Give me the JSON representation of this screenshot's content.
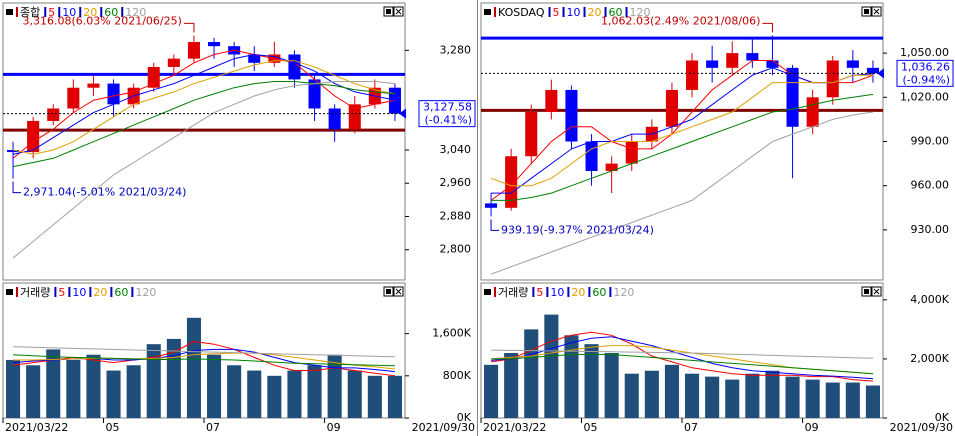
{
  "chart_data": [
    {
      "type": "candlestick",
      "title": "종합",
      "open": [
        3040,
        3035,
        3110,
        3140,
        3190,
        3200,
        3150,
        3190,
        3240,
        3260,
        3300,
        3290,
        3270,
        3250,
        3270,
        3210,
        3140,
        3090,
        3150,
        3190
      ],
      "high": [
        3060,
        3120,
        3150,
        3210,
        3220,
        3210,
        3200,
        3250,
        3270,
        3316.08,
        3310,
        3300,
        3290,
        3300,
        3280,
        3220,
        3150,
        3170,
        3210,
        3200
      ],
      "low": [
        2971.04,
        3020,
        3100,
        3130,
        3170,
        3120,
        3140,
        3180,
        3220,
        3250,
        3260,
        3240,
        3230,
        3240,
        3190,
        3110,
        3060,
        3080,
        3140,
        3110
      ],
      "close": [
        3035,
        3110,
        3140,
        3190,
        3200,
        3150,
        3190,
        3240,
        3260,
        3300,
        3290,
        3270,
        3250,
        3270,
        3210,
        3140,
        3090,
        3150,
        3190,
        3127.58
      ],
      "series": [
        {
          "name": "5",
          "color": "#ff0000",
          "values": [
            3020,
            3060,
            3090,
            3130,
            3160,
            3170,
            3180,
            3200,
            3220,
            3250,
            3270,
            3280,
            3270,
            3260,
            3250,
            3210,
            3170,
            3140,
            3150,
            3160
          ]
        },
        {
          "name": "10",
          "color": "#0000ff",
          "values": [
            3030,
            3040,
            3070,
            3100,
            3130,
            3150,
            3170,
            3185,
            3200,
            3220,
            3240,
            3260,
            3270,
            3265,
            3250,
            3230,
            3200,
            3180,
            3170,
            3160
          ]
        },
        {
          "name": "20",
          "color": "#e0a000",
          "values": [
            3040,
            3030,
            3040,
            3060,
            3090,
            3120,
            3150,
            3165,
            3180,
            3200,
            3215,
            3230,
            3245,
            3255,
            3255,
            3240,
            3220,
            3200,
            3185,
            3175
          ]
        },
        {
          "name": "60",
          "color": "#008000",
          "values": [
            3000,
            3010,
            3020,
            3040,
            3060,
            3080,
            3100,
            3120,
            3140,
            3160,
            3175,
            3190,
            3200,
            3205,
            3205,
            3200,
            3195,
            3185,
            3180,
            3175
          ]
        },
        {
          "name": "120",
          "color": "#a0a0a0",
          "values": [
            2780,
            2820,
            2860,
            2900,
            2940,
            2980,
            3010,
            3040,
            3070,
            3100,
            3130,
            3150,
            3170,
            3185,
            3195,
            3200,
            3205,
            3205,
            3205,
            3200
          ]
        }
      ],
      "ylim": [
        2727,
        3394
      ],
      "yticks": [
        {
          "value": 3280,
          "label": "3,280"
        },
        {
          "value": 3040,
          "label": "3,040"
        },
        {
          "value": 2960,
          "label": "2,960"
        },
        {
          "value": 2880,
          "label": "2,880"
        },
        {
          "value": 2800,
          "label": "2,800"
        }
      ],
      "hlines": [
        {
          "value": 3222,
          "color": "#0000ff"
        },
        {
          "value": 3088,
          "color": "#800000"
        }
      ],
      "last": {
        "value": 3127.58,
        "label": "3,127.58",
        "change_label": "(-0.41%)"
      },
      "annotations": [
        {
          "value": 3316.08,
          "label": "3,316.08(6.03% 2021/06/25)"
        },
        {
          "value": 2971.04,
          "label": "2,971.04(-5.01% 2021/03/24)"
        }
      ]
    },
    {
      "type": "bar",
      "title": "거래량",
      "color": "#1f4e7a",
      "values": [
        1100000,
        1000000,
        1300000,
        1100000,
        1200000,
        900000,
        1000000,
        1400000,
        1500000,
        1900000,
        1200000,
        1000000,
        900000,
        800000,
        900000,
        1000000,
        1200000,
        900000,
        800000,
        800000
      ],
      "series": [
        {
          "name": "5",
          "color": "#ff0000",
          "values": [
            1000000,
            1050000,
            1100000,
            1150000,
            1100000,
            1050000,
            1100000,
            1150000,
            1250000,
            1450000,
            1400000,
            1300000,
            1150000,
            1000000,
            900000,
            900000,
            950000,
            900000,
            850000,
            800000
          ]
        },
        {
          "name": "10",
          "color": "#0000ff",
          "values": [
            1050000,
            1080000,
            1100000,
            1120000,
            1130000,
            1100000,
            1100000,
            1130000,
            1180000,
            1280000,
            1300000,
            1300000,
            1250000,
            1150000,
            1050000,
            1000000,
            950000,
            950000,
            920000,
            880000
          ]
        },
        {
          "name": "20",
          "color": "#e0a000",
          "values": [
            1100000,
            1100000,
            1110000,
            1120000,
            1130000,
            1130000,
            1120000,
            1130000,
            1150000,
            1200000,
            1220000,
            1230000,
            1230000,
            1200000,
            1150000,
            1100000,
            1050000,
            1000000,
            970000,
            930000
          ]
        },
        {
          "name": "60",
          "color": "#008000",
          "values": [
            1200000,
            1180000,
            1160000,
            1150000,
            1140000,
            1130000,
            1120000,
            1110000,
            1110000,
            1120000,
            1110000,
            1100000,
            1080000,
            1060000,
            1040000,
            1030000,
            1020000,
            1010000,
            1000000,
            990000
          ]
        },
        {
          "name": "120",
          "color": "#a0a0a0",
          "values": [
            1350000,
            1340000,
            1330000,
            1320000,
            1310000,
            1300000,
            1290000,
            1280000,
            1270000,
            1260000,
            1250000,
            1240000,
            1230000,
            1220000,
            1210000,
            1200000,
            1190000,
            1180000,
            1170000,
            1160000
          ]
        }
      ],
      "ylim": [
        0,
        2560000
      ],
      "yticks": [
        {
          "value": 1600000,
          "label": "1,600K"
        },
        {
          "value": 800000,
          "label": "800K"
        },
        {
          "value": 0,
          "label": "0K"
        }
      ],
      "categories": [
        "2021/03/22",
        null,
        null,
        null,
        null,
        "05",
        null,
        null,
        null,
        null,
        "07",
        null,
        null,
        null,
        null,
        null,
        "09",
        null,
        null,
        null
      ],
      "end_label": "2021/09/30"
    },
    {
      "type": "candlestick",
      "title": "KOSDAQ",
      "open": [
        948,
        945,
        980,
        1010,
        1025,
        990,
        970,
        975,
        990,
        1000,
        1025,
        1045,
        1040,
        1050,
        1045,
        1040,
        1000,
        1020,
        1045,
        1040
      ],
      "high": [
        955,
        985,
        1015,
        1032,
        1028,
        995,
        980,
        995,
        1005,
        1030,
        1050,
        1055,
        1058,
        1060,
        1062.03,
        1042,
        1025,
        1048,
        1052,
        1045
      ],
      "low": [
        939.19,
        943,
        975,
        1005,
        985,
        960,
        955,
        970,
        985,
        995,
        1020,
        1030,
        1035,
        1040,
        1035,
        965,
        995,
        1015,
        1030,
        1030
      ],
      "close": [
        945,
        980,
        1010,
        1025,
        990,
        970,
        975,
        990,
        1000,
        1025,
        1045,
        1040,
        1050,
        1045,
        1040,
        1000,
        1020,
        1045,
        1040,
        1036.26
      ],
      "series": [
        {
          "name": "5",
          "color": "#ff0000",
          "values": [
            950,
            960,
            975,
            990,
            1000,
            1000,
            990,
            985,
            985,
            995,
            1010,
            1025,
            1035,
            1045,
            1045,
            1035,
            1030,
            1030,
            1030,
            1035
          ]
        },
        {
          "name": "10",
          "color": "#0000ff",
          "values": [
            955,
            955,
            965,
            975,
            985,
            990,
            990,
            995,
            995,
            1000,
            1005,
            1015,
            1025,
            1035,
            1040,
            1035,
            1030,
            1030,
            1035,
            1036
          ]
        },
        {
          "name": "20",
          "color": "#e0a000",
          "values": [
            965,
            960,
            960,
            965,
            975,
            985,
            990,
            990,
            990,
            995,
            1000,
            1005,
            1010,
            1020,
            1030,
            1030,
            1030,
            1030,
            1035,
            1035
          ]
        },
        {
          "name": "60",
          "color": "#008000",
          "values": [
            950,
            950,
            952,
            955,
            960,
            965,
            970,
            975,
            980,
            985,
            990,
            995,
            1000,
            1005,
            1010,
            1012,
            1015,
            1018,
            1020,
            1022
          ]
        },
        {
          "name": "120",
          "color": "#a0a0a0",
          "values": [
            900,
            905,
            910,
            915,
            920,
            925,
            930,
            935,
            940,
            945,
            950,
            960,
            970,
            980,
            990,
            995,
            1000,
            1005,
            1008,
            1010
          ]
        }
      ],
      "ylim": [
        896,
        1084
      ],
      "yticks": [
        {
          "value": 1050,
          "label": "1,050.00"
        },
        {
          "value": 1020,
          "label": "1,020.00"
        },
        {
          "value": 990,
          "label": "990.00"
        },
        {
          "value": 960,
          "label": "960.00"
        },
        {
          "value": 930,
          "label": "930.00"
        }
      ],
      "hlines": [
        {
          "value": 1060.2,
          "color": "#0000ff"
        },
        {
          "value": 1011.1,
          "color": "#800000"
        }
      ],
      "last": {
        "value": 1036.26,
        "label": "1,036.26",
        "change_label": "(-0.94%)"
      },
      "annotations": [
        {
          "value": 1062.03,
          "label": "1,062.03(2.49% 2021/08/06)"
        },
        {
          "value": 939.19,
          "label": "939.19(-9.37% 2021/03/24)"
        }
      ]
    },
    {
      "type": "bar",
      "title": "거래량",
      "color": "#1f4e7a",
      "values": [
        1800000,
        2200000,
        3000000,
        3500000,
        2800000,
        2500000,
        2200000,
        1500000,
        1600000,
        1800000,
        1500000,
        1400000,
        1300000,
        1500000,
        1600000,
        1400000,
        1300000,
        1200000,
        1200000,
        1100000
      ],
      "series": [
        {
          "name": "5",
          "color": "#ff0000",
          "values": [
            1900000,
            2000000,
            2300000,
            2600000,
            2800000,
            2900000,
            2800000,
            2500000,
            2100000,
            1900000,
            1700000,
            1600000,
            1500000,
            1450000,
            1450000,
            1450000,
            1400000,
            1400000,
            1300000,
            1250000
          ]
        },
        {
          "name": "10",
          "color": "#0000ff",
          "values": [
            1950000,
            2000000,
            2150000,
            2350000,
            2550000,
            2700000,
            2750000,
            2600000,
            2450000,
            2250000,
            2050000,
            1850000,
            1700000,
            1600000,
            1550000,
            1500000,
            1450000,
            1420000,
            1380000,
            1330000
          ]
        },
        {
          "name": "20",
          "color": "#e0a000",
          "values": [
            2000000,
            2050000,
            2100000,
            2200000,
            2300000,
            2400000,
            2450000,
            2450000,
            2400000,
            2300000,
            2200000,
            2100000,
            2000000,
            1900000,
            1800000,
            1700000,
            1650000,
            1600000,
            1550000,
            1500000
          ]
        },
        {
          "name": "60",
          "color": "#008000",
          "values": [
            2000000,
            2000000,
            2050000,
            2100000,
            2150000,
            2150000,
            2150000,
            2100000,
            2050000,
            2000000,
            1950000,
            1900000,
            1850000,
            1800000,
            1750000,
            1700000,
            1650000,
            1600000,
            1550000,
            1500000
          ]
        },
        {
          "name": "120",
          "color": "#a0a0a0",
          "values": [
            2300000,
            2290000,
            2280000,
            2270000,
            2260000,
            2250000,
            2240000,
            2230000,
            2220000,
            2210000,
            2200000,
            2180000,
            2160000,
            2140000,
            2120000,
            2100000,
            2080000,
            2060000,
            2040000,
            2020000
          ]
        }
      ],
      "ylim": [
        0,
        4570000
      ],
      "yticks": [
        {
          "value": 4000000,
          "label": "4,000K"
        },
        {
          "value": 2000000,
          "label": "2,000K"
        },
        {
          "value": 0,
          "label": "0K"
        }
      ],
      "categories": [
        "2021/03/22",
        null,
        null,
        null,
        null,
        "05",
        null,
        null,
        null,
        null,
        "07",
        null,
        null,
        null,
        null,
        null,
        "09",
        null,
        null,
        null
      ],
      "end_label": "2021/09/30"
    }
  ]
}
